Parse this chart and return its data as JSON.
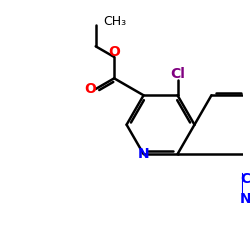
{
  "background_color": "#ffffff",
  "bond_color": "#000000",
  "atom_colors": {
    "O": "#ff0000",
    "N": "#0000ff",
    "Cl": "#800080",
    "C_label": "#000000"
  },
  "figsize": [
    2.5,
    2.5
  ],
  "dpi": 100
}
